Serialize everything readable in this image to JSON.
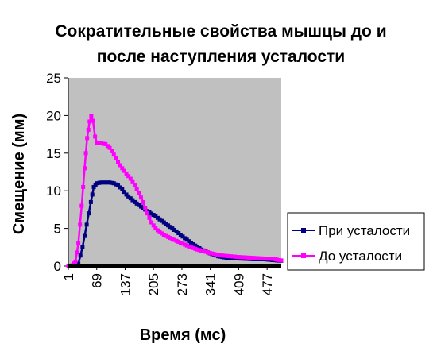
{
  "chart_data": {
    "type": "line",
    "title_lines": [
      "Сократительные свойства мышцы до и",
      "после наступления усталости"
    ],
    "xlabel": "Время (мс)",
    "ylabel": "Смещение (мм)",
    "ylim": [
      0,
      25
    ],
    "y_ticks": [
      0,
      5,
      10,
      15,
      20,
      25
    ],
    "xlim": [
      1,
      511
    ],
    "x_ticks": [
      1,
      69,
      137,
      205,
      273,
      341,
      409,
      477
    ],
    "grid": false,
    "plot_background": "#c0c0c0",
    "legend": {
      "position": "right"
    },
    "series": [
      {
        "name": "При усталости",
        "color": "#000080",
        "points": [
          [
            1,
            0
          ],
          [
            10,
            0
          ],
          [
            20,
            0
          ],
          [
            25,
            0.3
          ],
          [
            35,
            2.5
          ],
          [
            45,
            5.5
          ],
          [
            55,
            8.5
          ],
          [
            62,
            10.5
          ],
          [
            70,
            11
          ],
          [
            80,
            11.1
          ],
          [
            90,
            11.1
          ],
          [
            100,
            11.1
          ],
          [
            110,
            11
          ],
          [
            120,
            10.7
          ],
          [
            130,
            10.2
          ],
          [
            140,
            9.5
          ],
          [
            150,
            9
          ],
          [
            160,
            8.5
          ],
          [
            170,
            8.1
          ],
          [
            180,
            7.7
          ],
          [
            190,
            7.3
          ],
          [
            205,
            6.8
          ],
          [
            220,
            6.2
          ],
          [
            240,
            5.4
          ],
          [
            260,
            4.6
          ],
          [
            280,
            3.7
          ],
          [
            300,
            2.9
          ],
          [
            320,
            2.2
          ],
          [
            340,
            1.7
          ],
          [
            360,
            1.3
          ],
          [
            380,
            1.1
          ],
          [
            409,
            1
          ],
          [
            430,
            0.95
          ],
          [
            450,
            0.9
          ],
          [
            470,
            0.9
          ],
          [
            490,
            0.8
          ],
          [
            511,
            0.7
          ]
        ]
      },
      {
        "name": "До усталости",
        "color": "#ff00ff",
        "points": [
          [
            1,
            0
          ],
          [
            10,
            0.1
          ],
          [
            18,
            0.6
          ],
          [
            25,
            3
          ],
          [
            33,
            8
          ],
          [
            40,
            13
          ],
          [
            46,
            17
          ],
          [
            52,
            19.2
          ],
          [
            56,
            19.9
          ],
          [
            60,
            19.3
          ],
          [
            65,
            17.2
          ],
          [
            70,
            16.3
          ],
          [
            80,
            16.3
          ],
          [
            90,
            16.2
          ],
          [
            100,
            15.7
          ],
          [
            110,
            14.8
          ],
          [
            120,
            13.8
          ],
          [
            130,
            13
          ],
          [
            140,
            12.3
          ],
          [
            150,
            11.6
          ],
          [
            160,
            10.7
          ],
          [
            170,
            9.7
          ],
          [
            180,
            8.5
          ],
          [
            190,
            7
          ],
          [
            200,
            5.8
          ],
          [
            210,
            5
          ],
          [
            220,
            4.5
          ],
          [
            235,
            4
          ],
          [
            250,
            3.6
          ],
          [
            270,
            3.1
          ],
          [
            290,
            2.6
          ],
          [
            310,
            2.2
          ],
          [
            330,
            1.9
          ],
          [
            350,
            1.6
          ],
          [
            370,
            1.4
          ],
          [
            390,
            1.3
          ],
          [
            409,
            1.2
          ],
          [
            440,
            1.1
          ],
          [
            470,
            1
          ],
          [
            490,
            0.95
          ],
          [
            511,
            0.75
          ]
        ]
      }
    ]
  }
}
